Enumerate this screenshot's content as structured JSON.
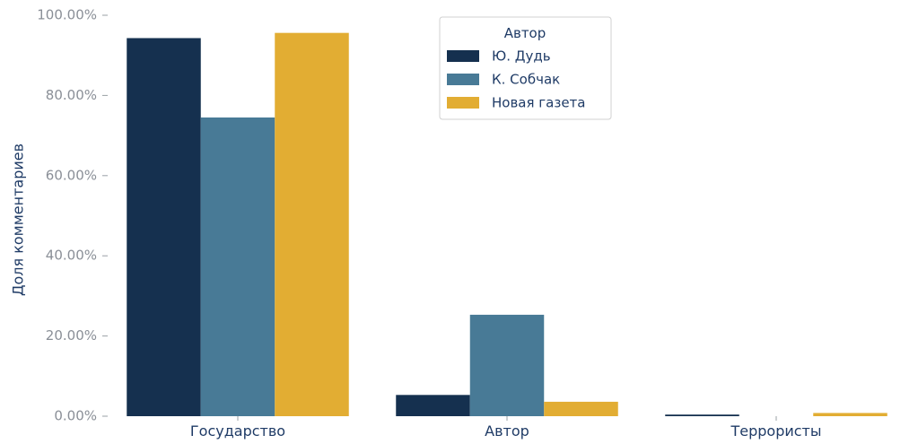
{
  "chart_data": {
    "type": "bar",
    "categories": [
      "Государство",
      "Автор",
      "Террористы"
    ],
    "series": [
      {
        "name": "Ю. Дудь",
        "color": "#15304f",
        "values": [
          94.3,
          5.3,
          0.4
        ]
      },
      {
        "name": "К. Собчак",
        "color": "#487a96",
        "values": [
          74.5,
          25.3,
          0.0
        ]
      },
      {
        "name": "Новая газета",
        "color": "#e2ad33",
        "values": [
          95.6,
          3.6,
          0.8
        ]
      }
    ],
    "ylabel": "Доля комментариев",
    "xlabel": "",
    "ylim": [
      0,
      100
    ],
    "yticks": [
      "0.00%",
      "20.00%",
      "40.00%",
      "60.00%",
      "80.00%",
      "100.00%"
    ],
    "grid": false,
    "legend": {
      "title": "Автор",
      "position": "top-center"
    }
  }
}
